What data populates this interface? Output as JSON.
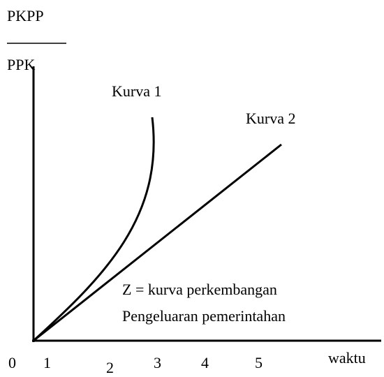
{
  "y_axis_label": {
    "numerator": "PKPP",
    "denominator": "PPK"
  },
  "curves": [
    {
      "label": "Kurva 1"
    },
    {
      "label": "Kurva 2"
    }
  ],
  "annotation": [
    "Z = kurva perkembangan",
    "Pengeluaran pemerintahan"
  ],
  "x_axis_label": "waktu",
  "x_tick_labels": [
    "0",
    "1",
    "2",
    "3",
    "4",
    "5"
  ]
}
